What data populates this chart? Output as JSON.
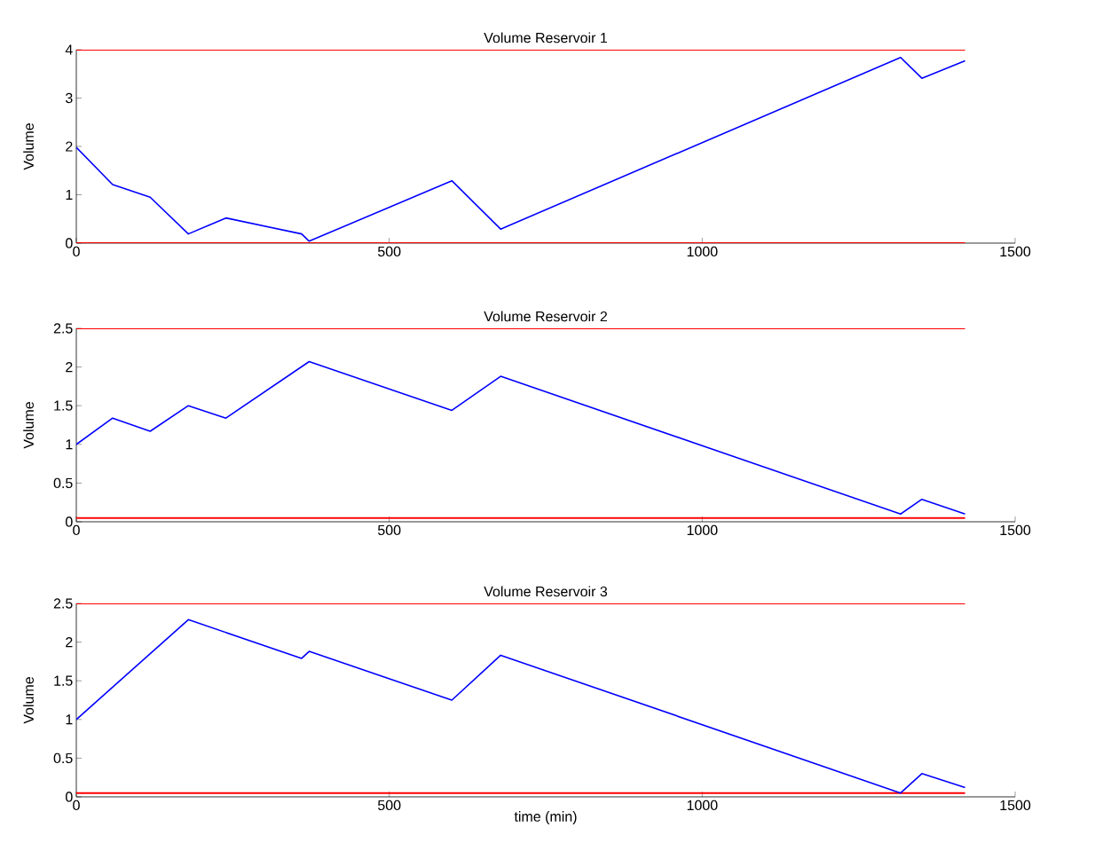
{
  "chart_data": [
    {
      "type": "line",
      "title": "Volume Reservoir 1",
      "ylabel": "Volume",
      "xlim": [
        0,
        1500
      ],
      "xticks": [
        0,
        500,
        1000,
        1500
      ],
      "ylim": [
        0,
        4
      ],
      "yticks": [
        0,
        1,
        2,
        3,
        4
      ],
      "series": [
        {
          "color": "#0000ff",
          "x": [
            0,
            58,
            118,
            179,
            239,
            360,
            372,
            600,
            678,
            1317,
            1351,
            1420
          ],
          "values": [
            1.98,
            1.21,
            0.95,
            0.19,
            0.52,
            0.19,
            0.04,
            1.29,
            0.29,
            3.84,
            3.41,
            3.77
          ]
        }
      ],
      "ref_lines": [
        {
          "axis": "y",
          "value": 4,
          "color": "#ff0000"
        },
        {
          "axis": "y",
          "value": 0,
          "color": "#ff0000"
        }
      ]
    },
    {
      "type": "line",
      "title": "Volume Reservoir 2",
      "ylabel": "Volume",
      "xlim": [
        0,
        1500
      ],
      "xticks": [
        0,
        500,
        1000,
        1500
      ],
      "ylim": [
        0,
        2.5
      ],
      "yticks": [
        0,
        0.5,
        1,
        1.5,
        2,
        2.5
      ],
      "series": [
        {
          "color": "#0000ff",
          "x": [
            0,
            58,
            118,
            179,
            239,
            372,
            600,
            678,
            1317,
            1351,
            1420
          ],
          "values": [
            1.0,
            1.34,
            1.17,
            1.5,
            1.34,
            2.07,
            1.44,
            1.88,
            0.1,
            0.29,
            0.1
          ]
        }
      ],
      "ref_lines": [
        {
          "axis": "y",
          "value": 2.5,
          "color": "#ff0000"
        },
        {
          "axis": "y",
          "value": 0.05,
          "color": "#ff0000"
        }
      ]
    },
    {
      "type": "line",
      "title": "Volume Reservoir 3",
      "xlabel": "time (min)",
      "ylabel": "Volume",
      "xlim": [
        0,
        1500
      ],
      "xticks": [
        0,
        500,
        1000,
        1500
      ],
      "ylim": [
        0,
        2.5
      ],
      "yticks": [
        0,
        0.5,
        1,
        1.5,
        2,
        2.5
      ],
      "series": [
        {
          "color": "#0000ff",
          "x": [
            0,
            179,
            360,
            372,
            600,
            678,
            1317,
            1351,
            1420
          ],
          "values": [
            1.0,
            2.29,
            1.79,
            1.88,
            1.25,
            1.83,
            0.05,
            0.3,
            0.12
          ]
        }
      ],
      "ref_lines": [
        {
          "axis": "y",
          "value": 2.5,
          "color": "#ff0000"
        },
        {
          "axis": "y",
          "value": 0.05,
          "color": "#ff0000"
        }
      ]
    }
  ]
}
